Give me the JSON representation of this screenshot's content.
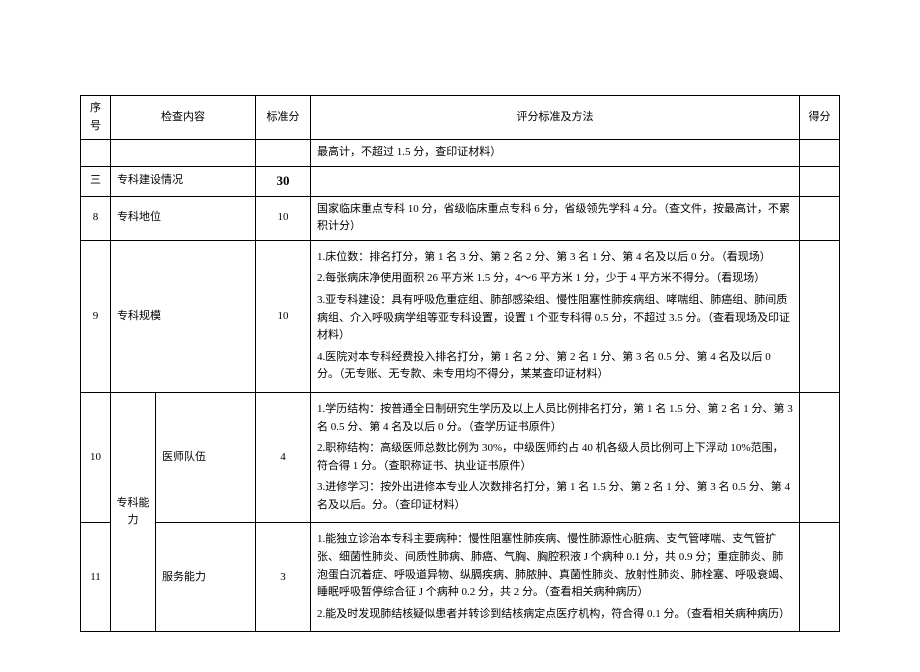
{
  "header": {
    "seq": "序号",
    "content": "检查内容",
    "std_score": "标准分",
    "criteria": "评分标准及方法",
    "result": "得分"
  },
  "rows": {
    "carryover": {
      "criteria": "最高计，不超过 1.5 分，查印证材料）"
    },
    "section3": {
      "seq": "三",
      "title": "专科建设情况",
      "score": "30"
    },
    "r8": {
      "seq": "8",
      "title": "专科地位",
      "score": "10",
      "criteria": "国家临床重点专科 10 分，省级临床重点专科 6 分，省级领先学科 4 分。（查文件，按最高计，不累积计分）"
    },
    "r9": {
      "seq": "9",
      "title": "专科规模",
      "score": "10",
      "c1": "1.床位数：排名打分，第 1 名 3 分、第 2 名 2 分、第 3 名 1 分、第 4 名及以后 0 分。（看现场）",
      "c2": "2.每张病床净使用面积 26 平方米 1.5 分，4～6 平方米 1 分，少于 4 平方米不得分。（看现场）",
      "c3": "3.亚专科建设：具有呼吸危重症组、肺部感染组、慢性阻塞性肺疾病组、哮喘组、肺癌组、肺间质病组、介入呼吸病学组等亚专科设置，设置 1 个亚专科得 0.5 分，不超过 3.5 分。（查看现场及印证材料）",
      "c4": "4.医院对本专科经费投入排名打分，第 1 名 2 分、第 2 名 1 分、第 3 名 0.5 分、第 4 名及以后 0 分。（无专账、无专款、未专用均不得分，某某查印证材料）"
    },
    "groupTitle": "专科能力",
    "r10": {
      "seq": "10",
      "title": "医师队伍",
      "score": "4",
      "c1": "1.学历结构：按普通全日制研究生学历及以上人员比例排名打分，第 1 名 1.5 分、第 2 名 1 分、第 3 名 0.5 分、第 4 名及以后 0 分。（查学历证书原件）",
      "c2": "2.职称结构：高级医师总数比例为 30%，中级医师约占 40 机各级人员比例可上下浮动 10%范围，符合得 1 分。（查职称证书、执业证书原件）",
      "c3": "3.进修学习：按外出进修本专业人次数排名打分，第 1 名 1.5 分、第 2 名 1 分、第 3 名 0.5 分、第 4 名及以后。分。（查印证材料）"
    },
    "r11": {
      "seq": "11",
      "title": "服务能力",
      "score": "3",
      "c1": "1.能独立诊治本专科主要病种：慢性阻塞性肺疾病、慢性肺源性心脏病、支气管哮喘、支气管扩张、细菌性肺炎、间质性肺病、肺癌、气胸、胸腔积液 J 个病种 0.1 分，共 0.9 分；重症肺炎、肺泡蛋白沉着症、呼吸道异物、纵膈疾病、肺脓肿、真菌性肺炎、放射性肺炎、肺栓塞、呼吸衰竭、睡眠呼吸暂停综合征 J 个病种 0.2 分，共 2 分。（查看相关病种病历）",
      "c2": "2.能及时发现肺结核疑似患者并转诊到结核病定点医疗机构，符合得 0.1 分。（查看相关病种病历）"
    }
  }
}
